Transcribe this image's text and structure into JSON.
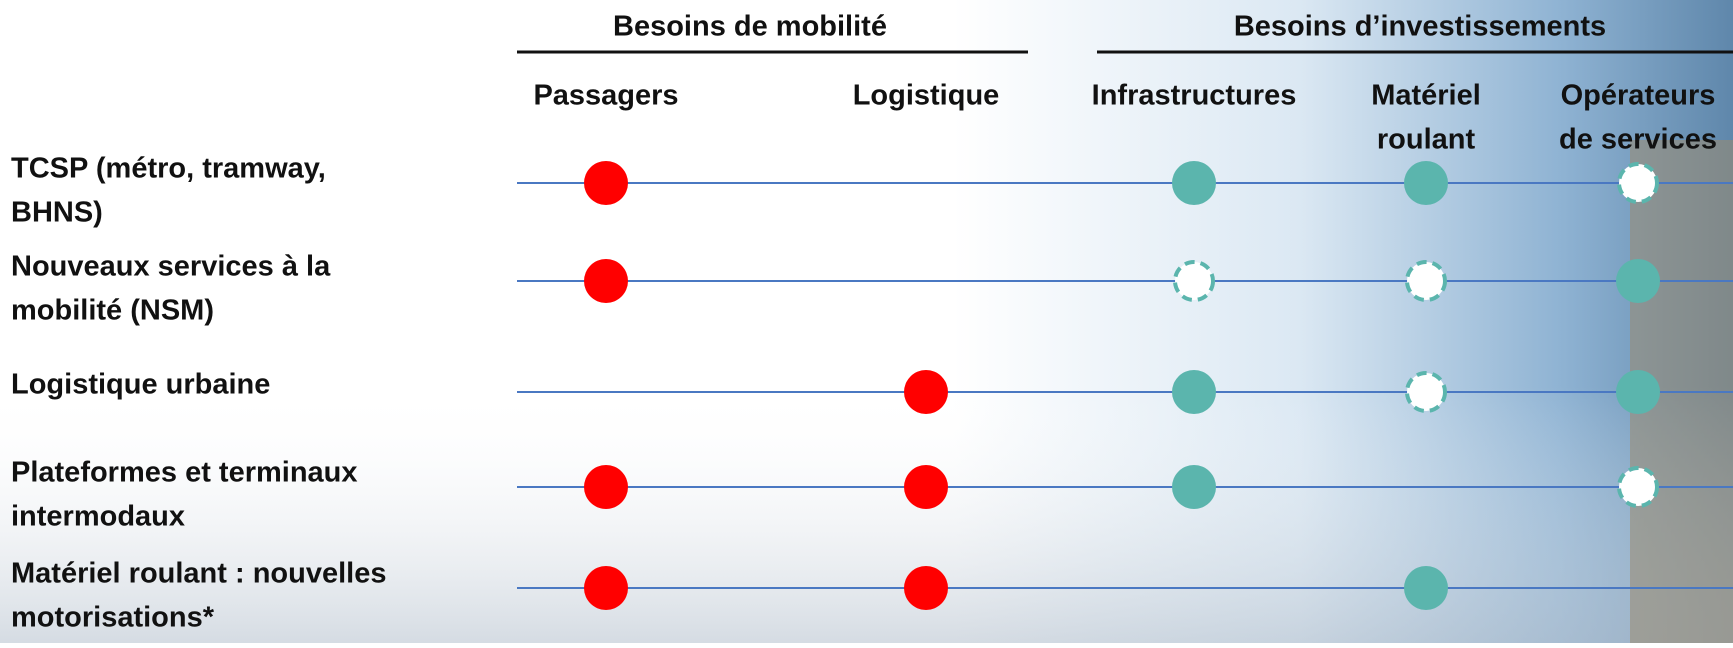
{
  "groups": [
    {
      "title": "Besoins de mobilité",
      "color": "#ff0000",
      "columns": [
        [
          "Passagers"
        ],
        [
          "Logistique"
        ]
      ]
    },
    {
      "title": "Besoins d’investissements",
      "color": "#5bb5ad",
      "columns": [
        [
          "Infrastructures"
        ],
        [
          "Matériel",
          "roulant"
        ],
        [
          "Opérateurs",
          "de services"
        ]
      ]
    }
  ],
  "rows": [
    {
      "label": [
        "TCSP (métro, tramway,",
        "BHNS)"
      ],
      "marks": [
        "solid",
        null,
        "solid",
        "solid",
        "dashed"
      ]
    },
    {
      "label": [
        "Nouveaux services à la",
        "mobilité (NSM)"
      ],
      "marks": [
        "solid",
        null,
        "dashed",
        "dashed",
        "solid"
      ]
    },
    {
      "label": [
        "Logistique urbaine"
      ],
      "marks": [
        null,
        "solid",
        "solid",
        "dashed",
        "solid"
      ]
    },
    {
      "label": [
        "Plateformes et terminaux",
        "intermodaux"
      ],
      "marks": [
        "solid",
        "solid",
        "solid",
        null,
        "dashed"
      ]
    },
    {
      "label": [
        "Matériel roulant : nouvelles",
        "motorisations*"
      ],
      "marks": [
        "solid",
        "solid",
        null,
        "solid",
        null
      ]
    }
  ]
}
